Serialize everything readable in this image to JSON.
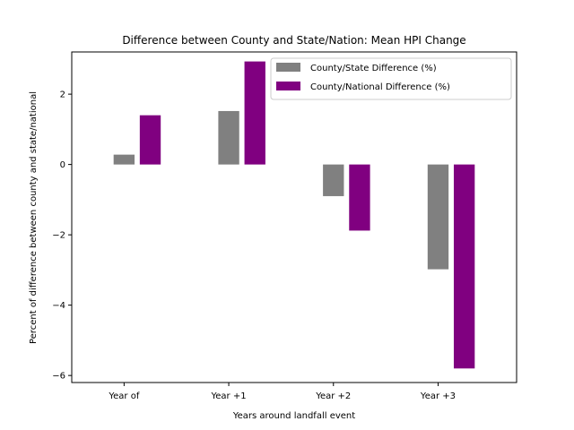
{
  "chart_data": {
    "type": "bar",
    "title": "Difference between County and State/Nation: Mean HPI Change",
    "xlabel": "Years around landfall event",
    "ylabel": "Percent of difference between county and state/national",
    "categories": [
      "Year of",
      "Year +1",
      "Year +2",
      "Year +3"
    ],
    "series": [
      {
        "name": "County/State Difference (%)",
        "values": [
          0.28,
          1.52,
          -0.9,
          -2.98
        ],
        "color": "#808080"
      },
      {
        "name": "County/National Difference (%)",
        "values": [
          1.4,
          2.93,
          -1.88,
          -5.8
        ],
        "color": "#800080"
      }
    ],
    "ylim": [
      -6.2,
      3.2
    ],
    "yticks": [
      -6,
      -4,
      -2,
      0,
      2
    ],
    "ytick_labels": [
      "−6",
      "−4",
      "−2",
      "0",
      "2"
    ],
    "grid": false,
    "legend_position": "top-right"
  }
}
